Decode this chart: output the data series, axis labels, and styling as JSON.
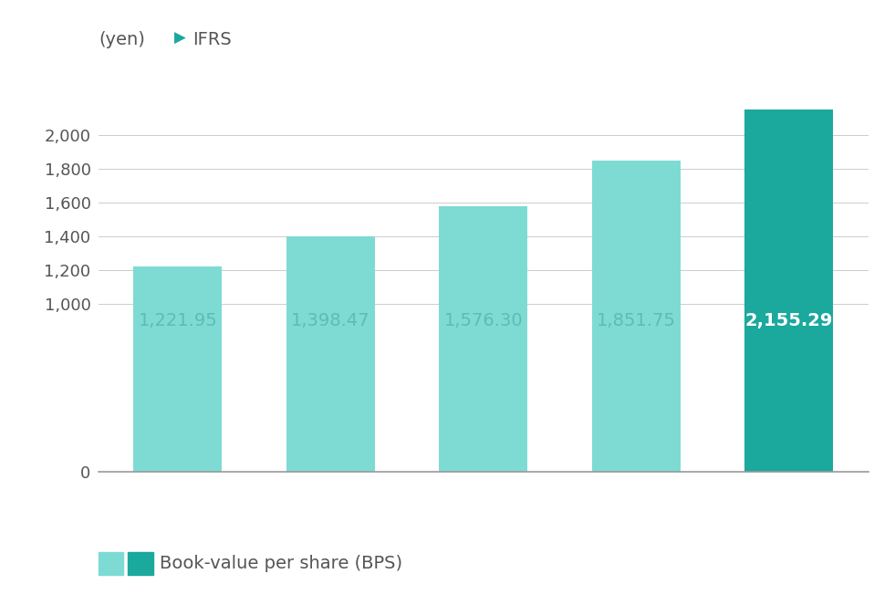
{
  "values": [
    1221.95,
    1398.47,
    1576.3,
    1851.75,
    2155.29
  ],
  "bar_colors": [
    "#7DDBD4",
    "#7DDBD4",
    "#7DDBD4",
    "#7DDBD4",
    "#1BA89D"
  ],
  "light_color": "#7DDBD4",
  "dark_color": "#1BA89D",
  "label_colors": [
    "#5BBDB5",
    "#5BBDB5",
    "#5BBDB5",
    "#5BBDB5",
    "#ffffff"
  ],
  "label_fontweights": [
    "normal",
    "normal",
    "normal",
    "normal",
    "bold"
  ],
  "ylabel": "(yen)",
  "ifrs_label": "IFRS",
  "legend_label": "Book-value per share (BPS)",
  "ylim": [
    0,
    2300
  ],
  "yticks": [
    0,
    1000,
    1200,
    1400,
    1600,
    1800,
    2000
  ],
  "ytick_labels": [
    "0",
    "1,000",
    "1,200",
    "1,400",
    "1,600",
    "1,800",
    "2,000"
  ],
  "background_color": "#ffffff",
  "grid_color": "#cccccc",
  "label_fontsize": 14,
  "axis_fontsize": 13,
  "legend_fontsize": 14,
  "text_color": "#555555",
  "arrow_color": "#1BA89D"
}
